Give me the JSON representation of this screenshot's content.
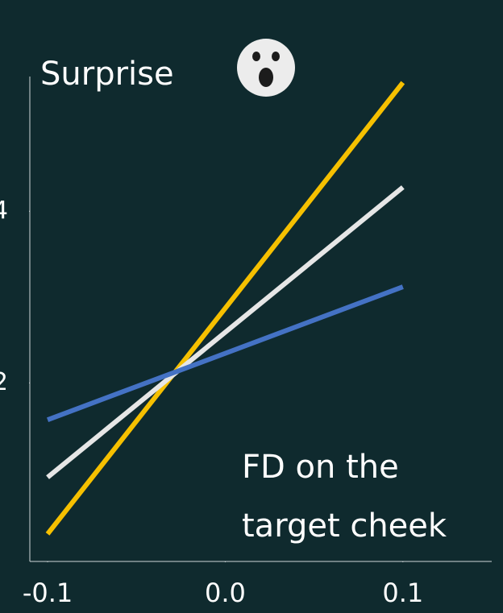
{
  "chart_data": {
    "type": "line",
    "title": "Surprise",
    "annotation": [
      "FD on the",
      "target cheek"
    ],
    "x": [
      -0.1,
      0.1
    ],
    "series": [
      {
        "color": "#f6c000",
        "values": [
          0.24,
          5.5
        ]
      },
      {
        "color": "#e6e6e6",
        "values": [
          0.9,
          4.28
        ]
      },
      {
        "color": "#4472c4",
        "values": [
          1.57,
          3.12
        ]
      }
    ],
    "xlim": [
      -0.11,
      0.15
    ],
    "ylim": [
      -0.08,
      5.57
    ],
    "xticks": [
      {
        "value": -0.1,
        "label": "-0.1"
      },
      {
        "value": 0,
        "label": "0.0"
      },
      0.1
    ],
    "yticks": [
      2,
      4
    ],
    "grid": false
  }
}
